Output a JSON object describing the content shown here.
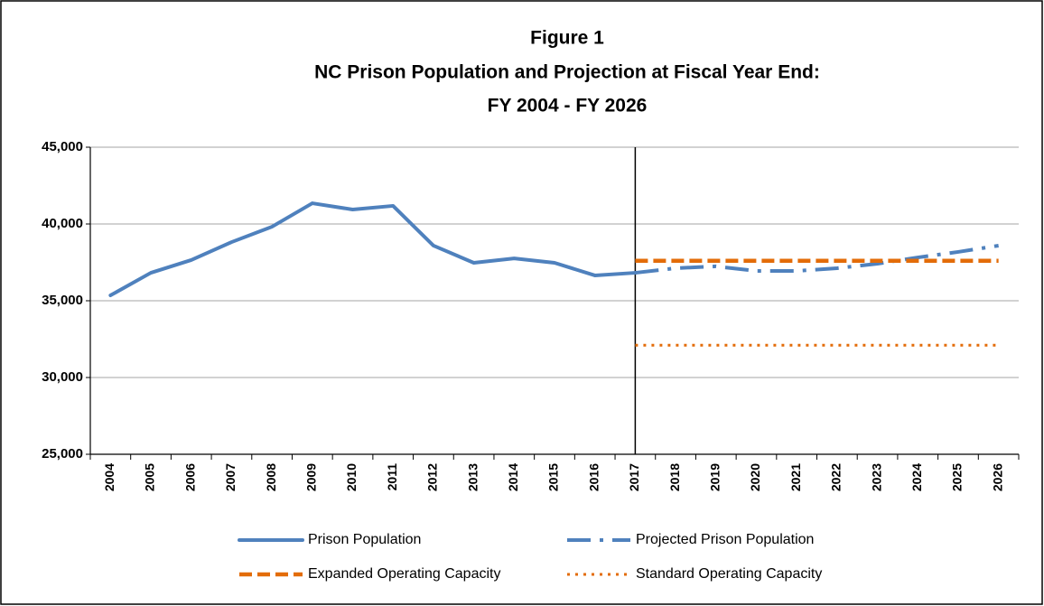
{
  "chart_data": {
    "type": "line",
    "title": [
      "Figure 1",
      "NC Prison Population and Projection at Fiscal Year End:",
      "FY 2004 - FY 2026"
    ],
    "categories": [
      "2004",
      "2005",
      "2006",
      "2007",
      "2008",
      "2009",
      "2010",
      "2011",
      "2012",
      "2013",
      "2014",
      "2015",
      "2016",
      "2017",
      "2018",
      "2019",
      "2020",
      "2021",
      "2022",
      "2023",
      "2024",
      "2025",
      "2026"
    ],
    "series": [
      {
        "name": "Prison Population",
        "color": "#4f81bd",
        "dash": "solid",
        "values": [
          35350,
          36820,
          37650,
          38820,
          39820,
          41350,
          40940,
          41180,
          38590,
          37470,
          37760,
          37470,
          36650,
          36820,
          null,
          null,
          null,
          null,
          null,
          null,
          null,
          null,
          null
        ]
      },
      {
        "name": "Projected Prison Population",
        "color": "#4f81bd",
        "dash": "long-dash-dot",
        "values": [
          null,
          null,
          null,
          null,
          null,
          null,
          null,
          null,
          null,
          null,
          null,
          null,
          null,
          36820,
          37120,
          37240,
          36940,
          36940,
          37120,
          37410,
          37820,
          38180,
          38590
        ]
      },
      {
        "name": "Expanded Operating Capacity",
        "color": "#e36c09",
        "dash": "dash",
        "values": [
          null,
          null,
          null,
          null,
          null,
          null,
          null,
          null,
          null,
          null,
          null,
          null,
          null,
          37600,
          37600,
          37600,
          37600,
          37600,
          37600,
          37600,
          37600,
          37600,
          37600
        ]
      },
      {
        "name": "Standard Operating Capacity",
        "color": "#e36c09",
        "dash": "dot",
        "values": [
          null,
          null,
          null,
          null,
          null,
          null,
          null,
          null,
          null,
          null,
          null,
          null,
          null,
          32100,
          32100,
          32100,
          32100,
          32100,
          32100,
          32100,
          32100,
          32100,
          32100
        ]
      }
    ],
    "ylim": [
      25000,
      45000
    ],
    "yticks": [
      {
        "value": 25000,
        "label": "25,000"
      },
      {
        "value": 30000,
        "label": "30,000"
      },
      {
        "value": 35000,
        "label": "35,000"
      },
      {
        "value": 40000,
        "label": "40,000"
      },
      {
        "value": 45000,
        "label": "45,000"
      }
    ],
    "grid": true,
    "legend": "bottom"
  }
}
